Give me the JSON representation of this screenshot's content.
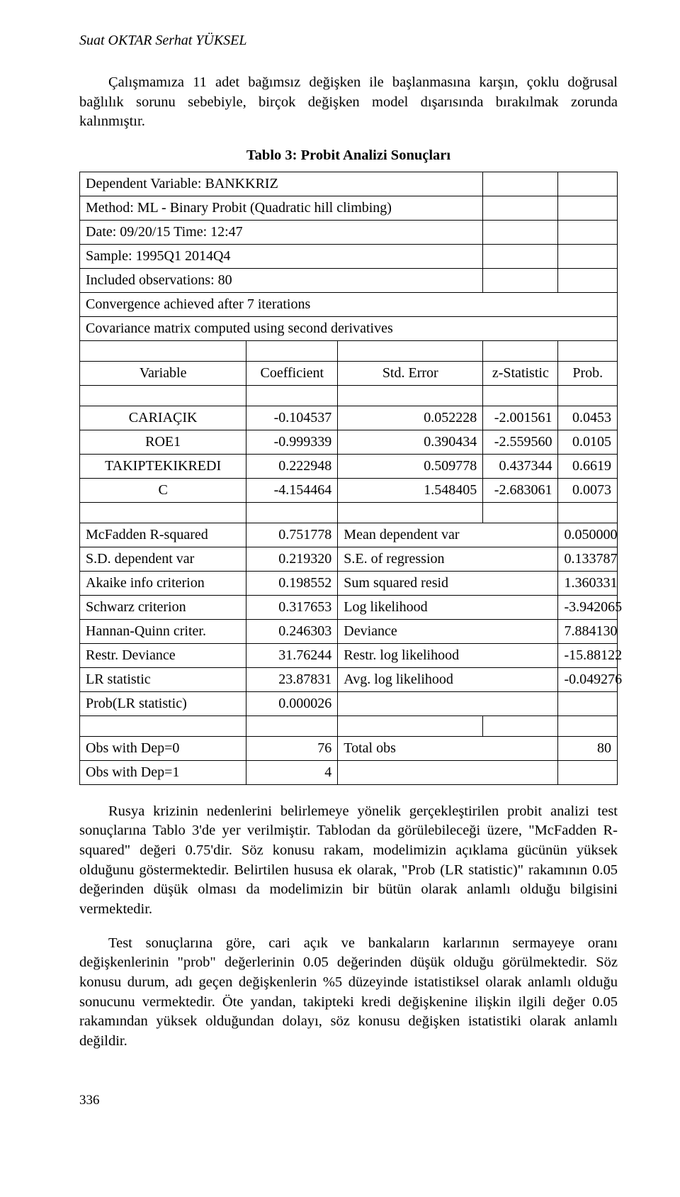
{
  "runningHead": "Suat OKTAR   Serhat YÜKSEL",
  "intro": "Çalışmamıza 11 adet bağımsız değişken ile başlanmasına karşın, çoklu doğrusal bağlılık sorunu sebebiyle, birçok değişken model dışarısında bırakılmak zorunda kalınmıştır.",
  "tableTitle": "Tablo 3: Probit Analizi Sonuçları",
  "meta": [
    "Dependent Variable: BANKKRIZ",
    "Method: ML - Binary Probit (Quadratic hill climbing)",
    "Date: 09/20/15  Time: 12:47",
    "Sample: 1995Q1 2014Q4",
    "Included observations: 80",
    "Convergence achieved after 7 iterations",
    "Covariance matrix computed using second derivatives"
  ],
  "head": {
    "c1": "Variable",
    "c2": "Coefficient",
    "c3": "Std. Error",
    "c4": "z-Statistic",
    "c5": "Prob."
  },
  "vars": [
    {
      "name": "CARIAÇIK",
      "coef": "-0.104537",
      "se": "0.052228",
      "z": "-2.001561",
      "p": "0.0453"
    },
    {
      "name": "ROE1",
      "coef": "-0.999339",
      "se": "0.390434",
      "z": "-2.559560",
      "p": "0.0105"
    },
    {
      "name": "TAKIPTEKIKREDI",
      "coef": "0.222948",
      "se": "0.509778",
      "z": "0.437344",
      "p": "0.6619"
    },
    {
      "name": "C",
      "coef": "-4.154464",
      "se": "1.548405",
      "z": "-2.683061",
      "p": "0.0073"
    }
  ],
  "stats": [
    {
      "l": "McFadden R-squared",
      "lv": "0.751778",
      "r": "Mean dependent var",
      "rv": "0.050000"
    },
    {
      "l": "S.D. dependent var",
      "lv": "0.219320",
      "r": "S.E. of regression",
      "rv": "0.133787"
    },
    {
      "l": "Akaike info criterion",
      "lv": "0.198552",
      "r": "Sum squared resid",
      "rv": "1.360331"
    },
    {
      "l": "Schwarz criterion",
      "lv": "0.317653",
      "r": "Log likelihood",
      "rv": "-3.942065"
    },
    {
      "l": "Hannan-Quinn criter.",
      "lv": "0.246303",
      "r": "Deviance",
      "rv": "7.884130"
    },
    {
      "l": "Restr. Deviance",
      "lv": "31.76244",
      "r": "Restr. log likelihood",
      "rv": "-15.88122"
    },
    {
      "l": "LR statistic",
      "lv": "23.87831",
      "r": "Avg. log likelihood",
      "rv": "-0.049276"
    },
    {
      "l": "Prob(LR statistic)",
      "lv": "0.000026",
      "r": "",
      "rv": ""
    }
  ],
  "obs": [
    {
      "l": "Obs with Dep=0",
      "lv": "76",
      "r": "Total obs",
      "rv": "80"
    },
    {
      "l": "Obs with Dep=1",
      "lv": "4",
      "r": "",
      "rv": ""
    }
  ],
  "para2": "Rusya krizinin nedenlerini belirlemeye yönelik gerçekleştirilen probit analizi test sonuçlarına Tablo 3'de yer verilmiştir. Tablodan da görülebileceği üzere, \"McFadden R-squared\" değeri 0.75'dir. Söz konusu rakam, modelimizin açıklama gücünün yüksek olduğunu göstermektedir. Belirtilen hususa ek olarak, \"Prob (LR statistic)\" rakamının 0.05 değerinden düşük olması da modelimizin bir bütün olarak anlamlı olduğu bilgisini vermektedir.",
  "para3": "Test sonuçlarına göre, cari açık ve bankaların karlarının sermayeye oranı değişkenlerinin \"prob\" değerlerinin 0.05 değerinden düşük olduğu görülmektedir. Söz konusu durum, adı geçen değişkenlerin %5 düzeyinde istatistiksel olarak anlamlı olduğu sonucunu vermektedir. Öte yandan, takipteki kredi değişkenine ilişkin ilgili değer 0.05 rakamından yüksek olduğundan dolayı, söz konusu değişken istatistiki olarak anlamlı değildir.",
  "pageNumber": "336"
}
